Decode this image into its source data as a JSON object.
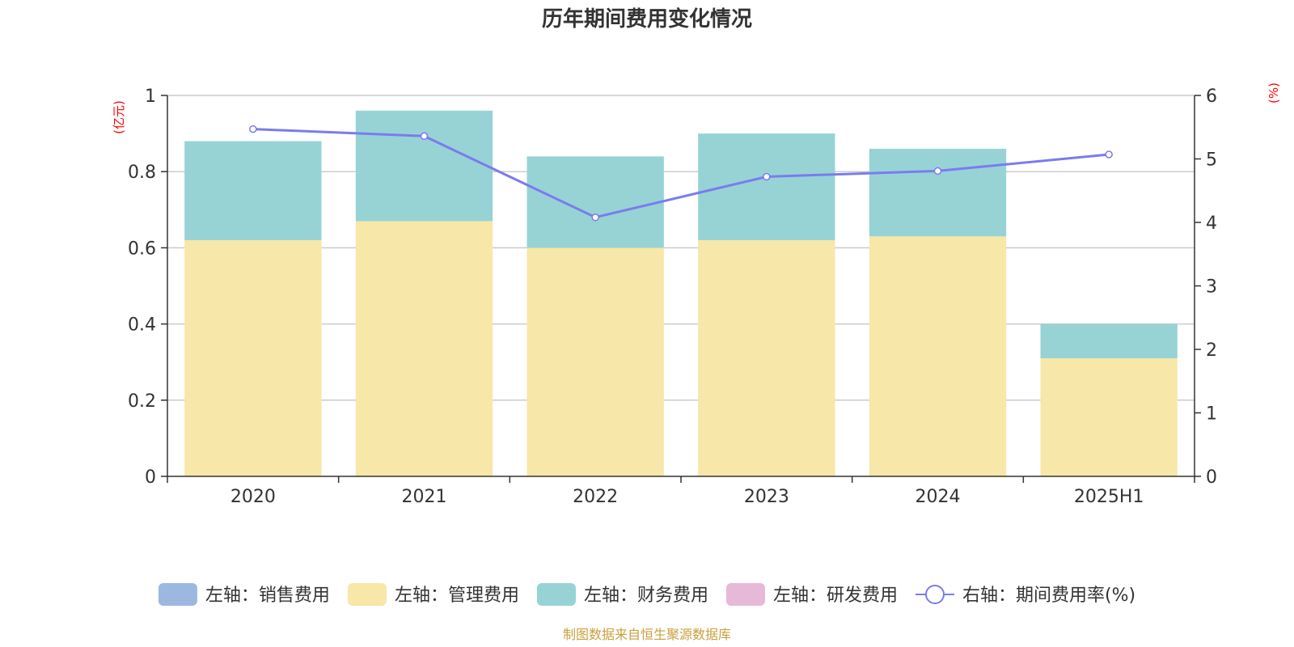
{
  "title": "历年期间费用变化情况",
  "footer": "制图数据来自恒生聚源数据库",
  "chart_data": {
    "type": "bar",
    "stacked": true,
    "categories": [
      "2020",
      "2021",
      "2022",
      "2023",
      "2024",
      "2025H1"
    ],
    "left_axis": {
      "unit": "(亿元)",
      "ylim": [
        0,
        1
      ],
      "ticks": [
        "0",
        "0.2",
        "0.4",
        "0.6",
        "0.8",
        "1"
      ]
    },
    "right_axis": {
      "unit": "(%)",
      "ylim": [
        0,
        6
      ],
      "ticks": [
        "0",
        "1",
        "2",
        "3",
        "4",
        "5",
        "6"
      ]
    },
    "series": [
      {
        "name": "左轴：销售费用",
        "type": "bar",
        "axis": "left",
        "color": "#9db8e0",
        "values": [
          0,
          0,
          0,
          0,
          0,
          0
        ]
      },
      {
        "name": "左轴：管理费用",
        "type": "bar",
        "axis": "left",
        "color": "#f7e7a8",
        "values": [
          0.62,
          0.67,
          0.6,
          0.62,
          0.63,
          0.31
        ]
      },
      {
        "name": "左轴：财务费用",
        "type": "bar",
        "axis": "left",
        "color": "#97d3d4",
        "values": [
          0.26,
          0.29,
          0.24,
          0.28,
          0.23,
          0.09
        ]
      },
      {
        "name": "左轴：研发费用",
        "type": "bar",
        "axis": "left",
        "color": "#e7b9d9",
        "values": [
          0,
          0,
          0,
          0,
          0,
          0
        ]
      },
      {
        "name": "右轴：期间费用率(%)",
        "type": "line",
        "axis": "right",
        "color": "#7b7bf0",
        "values": [
          5.47,
          5.36,
          4.08,
          4.72,
          4.81,
          5.07
        ]
      }
    ],
    "grid": true,
    "legend_position": "bottom"
  }
}
